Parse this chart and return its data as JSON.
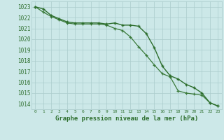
{
  "x": [
    0,
    1,
    2,
    3,
    4,
    5,
    6,
    7,
    8,
    9,
    10,
    11,
    12,
    13,
    14,
    15,
    16,
    17,
    18,
    19,
    20,
    21,
    22,
    23
  ],
  "line1": [
    1023.0,
    1022.8,
    1022.2,
    1021.9,
    1021.6,
    1021.5,
    1021.5,
    1021.5,
    1021.5,
    1021.4,
    1021.5,
    1021.3,
    1021.3,
    1021.2,
    1020.5,
    1019.2,
    1017.5,
    1016.6,
    1016.3,
    1015.8,
    1015.5,
    1015.0,
    1014.1,
    1013.8
  ],
  "line2": [
    1023.0,
    1022.5,
    1022.1,
    1021.8,
    1021.5,
    1021.4,
    1021.4,
    1021.4,
    1021.4,
    1021.3,
    1021.0,
    1020.8,
    1020.2,
    1019.3,
    1018.5,
    1017.6,
    1016.8,
    1016.5,
    1015.2,
    1015.0,
    1014.9,
    1014.8,
    1014.1,
    1013.8
  ],
  "bg_color": "#cce8e8",
  "grid_color": "#aacccc",
  "line_color": "#2d6e2d",
  "xlabel": "Graphe pression niveau de la mer (hPa)",
  "ylabel_min": 1014,
  "ylabel_max": 1023,
  "xlim": [
    -0.5,
    23.5
  ],
  "ylim": [
    1013.5,
    1023.5
  ]
}
